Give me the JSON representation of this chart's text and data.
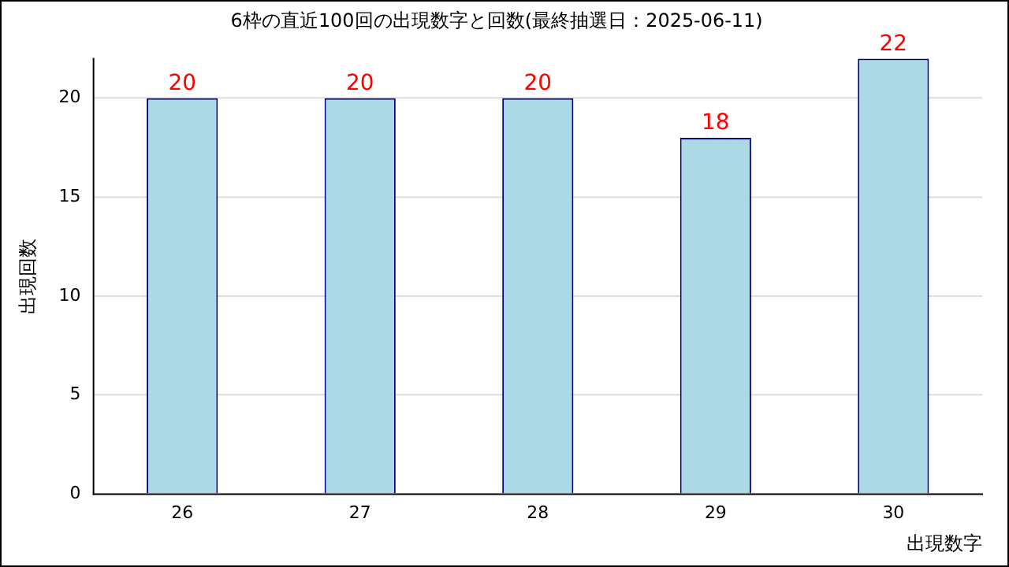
{
  "chart_data": {
    "type": "bar",
    "title": "6枠の直近100回の出現数字と回数(最終抽選日：2025-06-11)",
    "xlabel": "出現数字",
    "ylabel": "出現回数",
    "categories": [
      "26",
      "27",
      "28",
      "29",
      "30"
    ],
    "values": [
      20,
      20,
      20,
      18,
      22
    ],
    "color": "#add8e6",
    "ylim": [
      0,
      22
    ],
    "yticks": [
      0,
      5,
      10,
      15,
      20
    ],
    "grid": "y",
    "data_labels": true,
    "legend": false
  }
}
